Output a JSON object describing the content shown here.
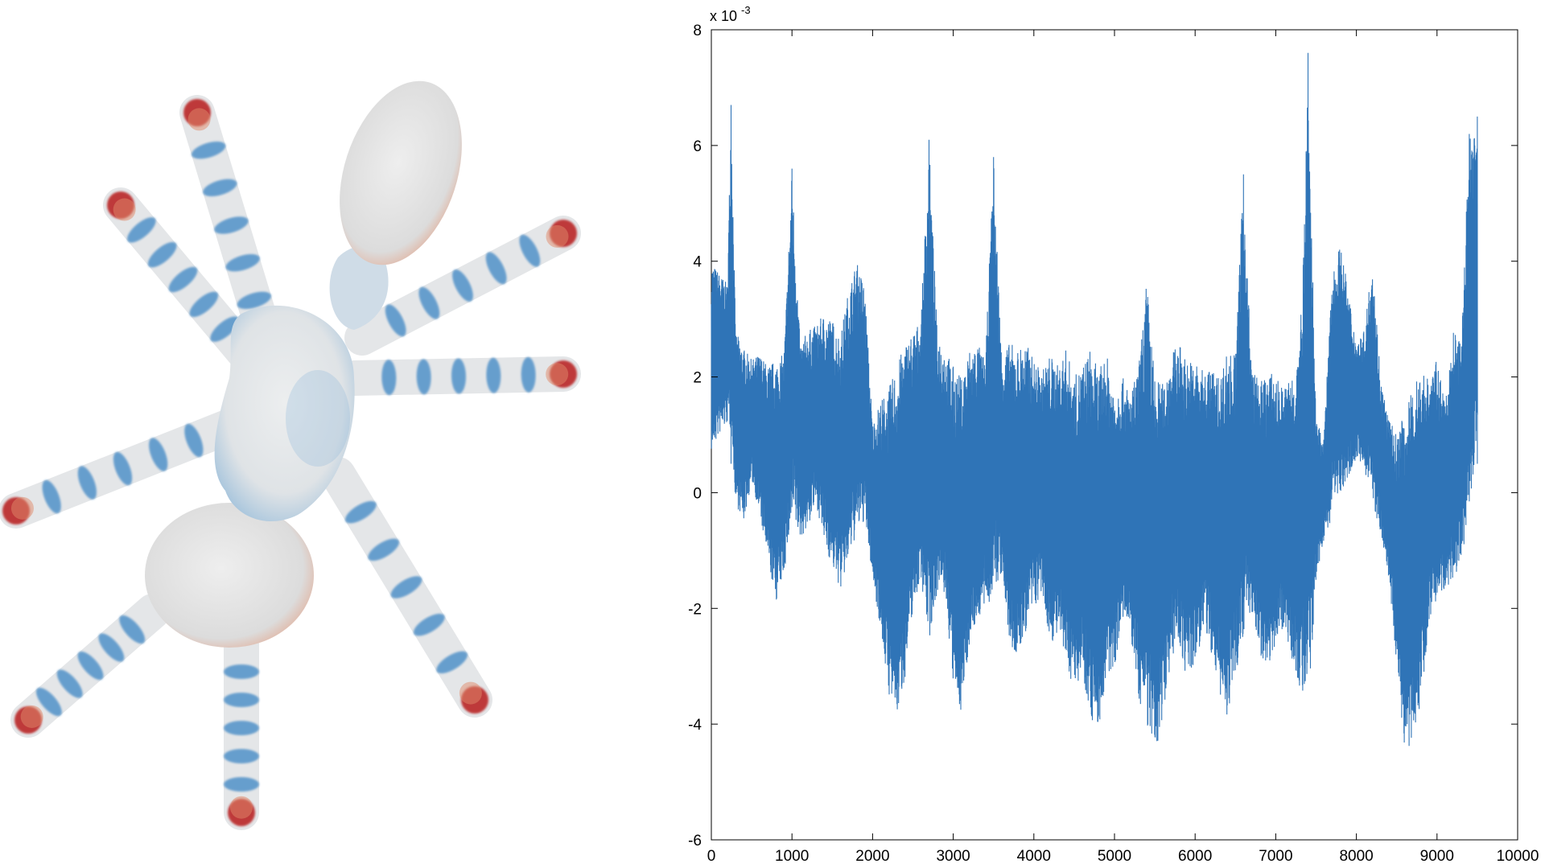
{
  "mesh": {
    "colors": {
      "surface": "#e4e6e8",
      "low": "#3d86c4",
      "high": "#b81e1e",
      "warm": "#e08a6a"
    }
  },
  "chart_data": {
    "type": "line",
    "title": "",
    "xlabel": "",
    "ylabel": "",
    "y_exponent_label": "x 10",
    "y_exponent_power": "-3",
    "xlim": [
      0,
      10000
    ],
    "ylim": [
      -6,
      8
    ],
    "x_ticks": [
      0,
      1000,
      2000,
      3000,
      4000,
      5000,
      6000,
      7000,
      8000,
      9000,
      10000
    ],
    "y_ticks": [
      -6,
      -4,
      -2,
      0,
      2,
      4,
      6,
      8
    ],
    "x_tick_labels": [
      "0",
      "1000",
      "2000",
      "3000",
      "4000",
      "5000",
      "6000",
      "7000",
      "8000",
      "9000",
      "10000"
    ],
    "y_tick_labels": [
      "-6",
      "-4",
      "-2",
      "0",
      "2",
      "4",
      "6",
      "8"
    ],
    "grid": false,
    "line_color": "#2f74b7",
    "series": [
      {
        "x_range": [
          0,
          9500
        ],
        "x": [
          0,
          100,
          200,
          245,
          300,
          400,
          500,
          600,
          700,
          800,
          900,
          1000,
          1100,
          1200,
          1300,
          1400,
          1500,
          1600,
          1700,
          1800,
          1900,
          2000,
          2100,
          2200,
          2300,
          2400,
          2500,
          2600,
          2700,
          2800,
          2900,
          3000,
          3100,
          3200,
          3300,
          3400,
          3500,
          3600,
          3700,
          3800,
          3900,
          4000,
          4100,
          4200,
          4300,
          4400,
          4500,
          4600,
          4700,
          4800,
          4900,
          5000,
          5100,
          5200,
          5300,
          5400,
          5500,
          5600,
          5700,
          5800,
          5900,
          6000,
          6100,
          6200,
          6300,
          6400,
          6500,
          6600,
          6700,
          6800,
          6900,
          7000,
          7100,
          7200,
          7300,
          7400,
          7500,
          7600,
          7700,
          7800,
          7900,
          8000,
          8100,
          8200,
          8300,
          8400,
          8500,
          8600,
          8700,
          8800,
          8900,
          9000,
          9100,
          9200,
          9300,
          9400,
          9500
        ],
        "upper": [
          4.0,
          3.8,
          3.6,
          6.7,
          2.8,
          2.5,
          2.3,
          2.4,
          2.2,
          2.3,
          2.4,
          5.6,
          2.6,
          2.8,
          2.9,
          3.1,
          3.0,
          2.7,
          3.5,
          4.0,
          3.6,
          1.2,
          1.6,
          1.8,
          2.2,
          2.6,
          2.8,
          3.0,
          6.1,
          2.8,
          2.5,
          2.2,
          2.0,
          2.5,
          2.6,
          2.3,
          5.8,
          2.4,
          2.6,
          2.5,
          2.6,
          2.3,
          2.1,
          2.4,
          2.2,
          2.5,
          2.0,
          2.2,
          2.5,
          2.1,
          2.4,
          1.8,
          2.0,
          1.7,
          2.2,
          3.7,
          2.0,
          1.9,
          2.4,
          2.6,
          2.3,
          2.3,
          2.1,
          2.2,
          2.0,
          2.5,
          2.4,
          5.5,
          2.2,
          1.9,
          2.1,
          2.0,
          1.8,
          2.1,
          2.5,
          7.6,
          1.2,
          1.0,
          3.8,
          4.3,
          3.5,
          2.6,
          2.8,
          4.1,
          2.0,
          1.3,
          1.0,
          1.4,
          1.8,
          2.2,
          2.0,
          2.3,
          1.5,
          2.8,
          2.6,
          6.2,
          6.5
        ],
        "lower": [
          0.7,
          1.0,
          1.2,
          1.0,
          -0.2,
          -0.5,
          0.2,
          -0.4,
          -1.2,
          -1.9,
          -1.4,
          -0.5,
          -0.8,
          -0.6,
          -0.2,
          -0.9,
          -1.3,
          -1.7,
          -1.2,
          -0.7,
          -0.5,
          -1.5,
          -2.4,
          -3.5,
          -3.9,
          -3.2,
          -2.0,
          -1.5,
          -2.6,
          -1.7,
          -1.8,
          -3.4,
          -3.8,
          -2.6,
          -2.2,
          -2.0,
          -1.8,
          -1.4,
          -2.7,
          -2.9,
          -2.4,
          -2.0,
          -1.8,
          -2.6,
          -2.5,
          -3.0,
          -3.4,
          -3.1,
          -3.9,
          -4.1,
          -3.3,
          -3.0,
          -2.2,
          -2.5,
          -3.6,
          -4.0,
          -4.7,
          -3.8,
          -2.9,
          -2.6,
          -3.3,
          -3.0,
          -2.4,
          -2.8,
          -3.5,
          -3.9,
          -3.2,
          -2.4,
          -2.1,
          -2.8,
          -3.0,
          -2.6,
          -2.3,
          -2.9,
          -3.4,
          -3.8,
          -1.5,
          -0.8,
          -0.4,
          0.0,
          0.3,
          0.6,
          0.4,
          -0.2,
          -0.7,
          -1.5,
          -3.0,
          -4.5,
          -4.3,
          -3.6,
          -2.2,
          -1.8,
          -1.7,
          -1.5,
          -1.2,
          -0.3,
          1.0
        ]
      }
    ]
  }
}
